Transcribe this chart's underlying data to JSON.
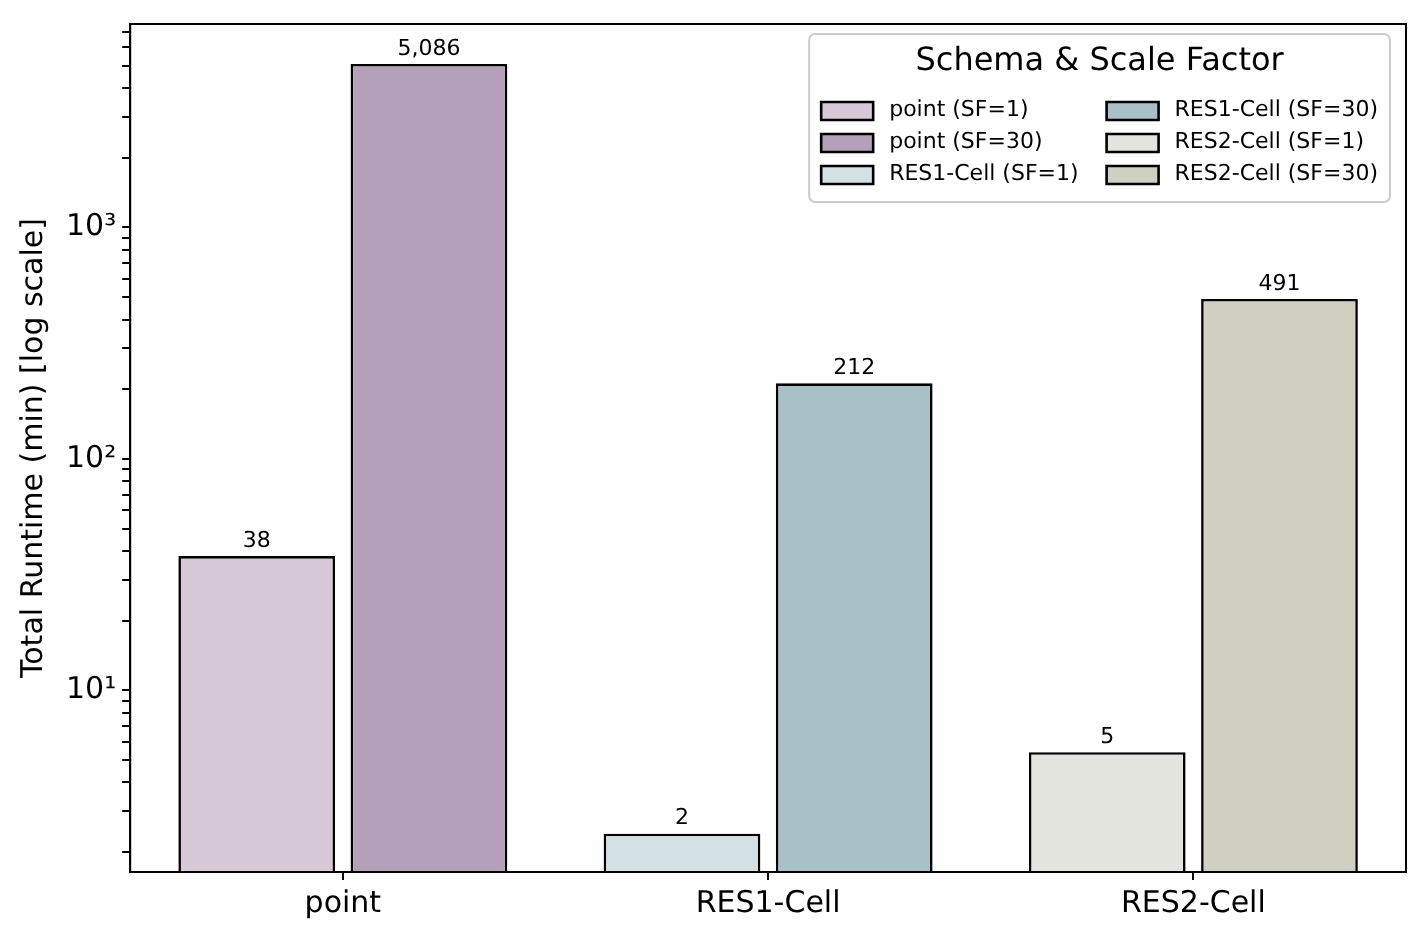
{
  "chart_data": {
    "type": "bar",
    "ylabel": "Total Runtime (min) [log scale]",
    "legend_title": "Schema & Scale Factor",
    "categories": [
      "point",
      "RES1-Cell",
      "RES2-Cell"
    ],
    "series": [
      {
        "name": "point (SF=1)",
        "color": "#d8c9d9",
        "values": [
          38,
          null,
          null
        ],
        "value_labels": [
          "38",
          null,
          null
        ]
      },
      {
        "name": "point (SF=30)",
        "color": "#b4a0b8",
        "values": [
          5086,
          null,
          null
        ],
        "value_labels": [
          "5,086",
          null,
          null
        ]
      },
      {
        "name": "RES1-Cell (SF=1)",
        "color": "#d3e0e4",
        "values": [
          null,
          2.4,
          null
        ],
        "value_labels": [
          null,
          "2",
          null
        ]
      },
      {
        "name": "RES1-Cell (SF=30)",
        "color": "#aac0c8",
        "values": [
          null,
          212,
          null
        ],
        "value_labels": [
          null,
          "212",
          null
        ]
      },
      {
        "name": "RES2-Cell (SF=1)",
        "color": "#e3e4de",
        "values": [
          null,
          null,
          5.4
        ],
        "value_labels": [
          null,
          null,
          "5"
        ]
      },
      {
        "name": "RES2-Cell (SF=30)",
        "color": "#cfcfc2",
        "values": [
          null,
          null,
          491
        ],
        "value_labels": [
          null,
          null,
          "491"
        ]
      }
    ],
    "log": "y",
    "ylim": [
      1.64,
      7570
    ],
    "yticks": [
      {
        "value": 2,
        "label": null
      },
      {
        "value": 3,
        "label": null
      },
      {
        "value": 4,
        "label": null
      },
      {
        "value": 5,
        "label": null
      },
      {
        "value": 6,
        "label": null
      },
      {
        "value": 7,
        "label": null
      },
      {
        "value": 8,
        "label": null
      },
      {
        "value": 9,
        "label": null
      },
      {
        "value": 10,
        "label": "10¹"
      },
      {
        "value": 20,
        "label": null
      },
      {
        "value": 30,
        "label": null
      },
      {
        "value": 40,
        "label": null
      },
      {
        "value": 50,
        "label": null
      },
      {
        "value": 60,
        "label": null
      },
      {
        "value": 70,
        "label": null
      },
      {
        "value": 80,
        "label": null
      },
      {
        "value": 90,
        "label": null
      },
      {
        "value": 100,
        "label": "10²"
      },
      {
        "value": 200,
        "label": null
      },
      {
        "value": 300,
        "label": null
      },
      {
        "value": 400,
        "label": null
      },
      {
        "value": 500,
        "label": null
      },
      {
        "value": 600,
        "label": null
      },
      {
        "value": 700,
        "label": null
      },
      {
        "value": 800,
        "label": null
      },
      {
        "value": 900,
        "label": null
      },
      {
        "value": 1000,
        "label": "10³"
      },
      {
        "value": 2000,
        "label": null
      },
      {
        "value": 3000,
        "label": null
      },
      {
        "value": 4000,
        "label": null
      },
      {
        "value": 5000,
        "label": null
      },
      {
        "value": 6000,
        "label": null
      },
      {
        "value": 7000,
        "label": null
      }
    ],
    "grid": false,
    "legend": "top right"
  }
}
